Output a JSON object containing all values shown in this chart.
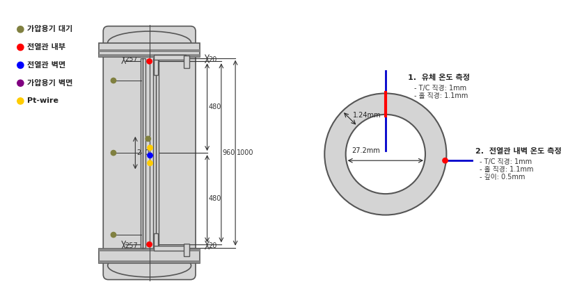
{
  "legend_items": [
    {
      "label": "가압용기 대기",
      "color": "#808040"
    },
    {
      "label": "전열관 내부",
      "color": "#ff0000"
    },
    {
      "label": "전열관 벽면",
      "color": "#0000ff"
    },
    {
      "label": "가압용기 벽면",
      "color": "#800080"
    },
    {
      "label": "Pt-wire",
      "color": "#ffcc00"
    }
  ],
  "dim_257_top": "257",
  "dim_257_bot": "257",
  "dim_480_top": "480",
  "dim_480_bot": "480",
  "dim_960": "960",
  "dim_1000": "1000",
  "dim_240": "240",
  "dim_20_top": "20",
  "dim_20_bot": "20",
  "annot1_title": "1.  유체 온도 측정",
  "annot1_line1": "- T/C 직경: 1mm",
  "annot1_line2": "- 홀 직경: 1.1mm",
  "annot2_title": "2.  전열관 내벽 온도 측정",
  "annot2_line1": "- T/C 직경: 1mm",
  "annot2_line2": "- 홀 직경: 1.1mm",
  "annot2_line3": "- 깊이: 0.5mm",
  "dim_1p24": "1.24mm",
  "dim_27p2": "27.2mm",
  "bg_color": "#ffffff",
  "vessel_color": "#d4d4d4",
  "vessel_outline": "#555555",
  "tube_color": "#d4d4d4",
  "tube_inner_color": "#ffffff"
}
